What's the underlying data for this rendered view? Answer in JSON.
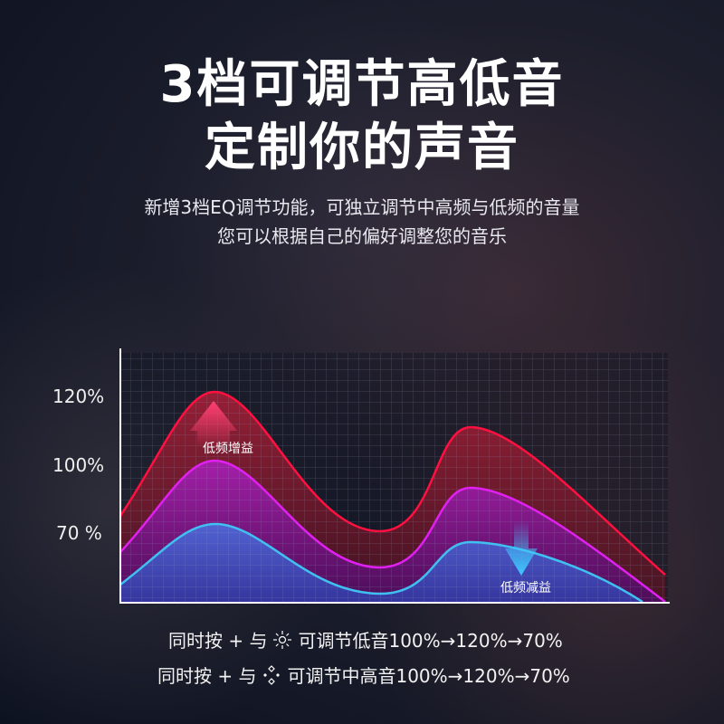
{
  "headline": {
    "line1": "3档可调节高低音",
    "line2": "定制你的声音"
  },
  "subtitle": {
    "line1": "新增3档EQ调节功能，可独立调节中高频与低频的音量",
    "line2": "您可以根据自己的偏好调整您的音乐"
  },
  "y_axis_labels": [
    "120%",
    "100%",
    "70 %"
  ],
  "annotations": {
    "boost": "低频增益",
    "cut": "低频减益"
  },
  "colors": {
    "high": "#ff1040",
    "mid": "#e020f0",
    "low": "#40c0f0"
  },
  "notes": [
    {
      "prefix": "同时按 + 与",
      "icon": "sun-icon",
      "text": "可调节低音100%→120%→70%"
    },
    {
      "prefix": "同时按 + 与",
      "icon": "diamond-dots-icon",
      "text": "可调节中高音100%→120%→70%"
    }
  ]
}
